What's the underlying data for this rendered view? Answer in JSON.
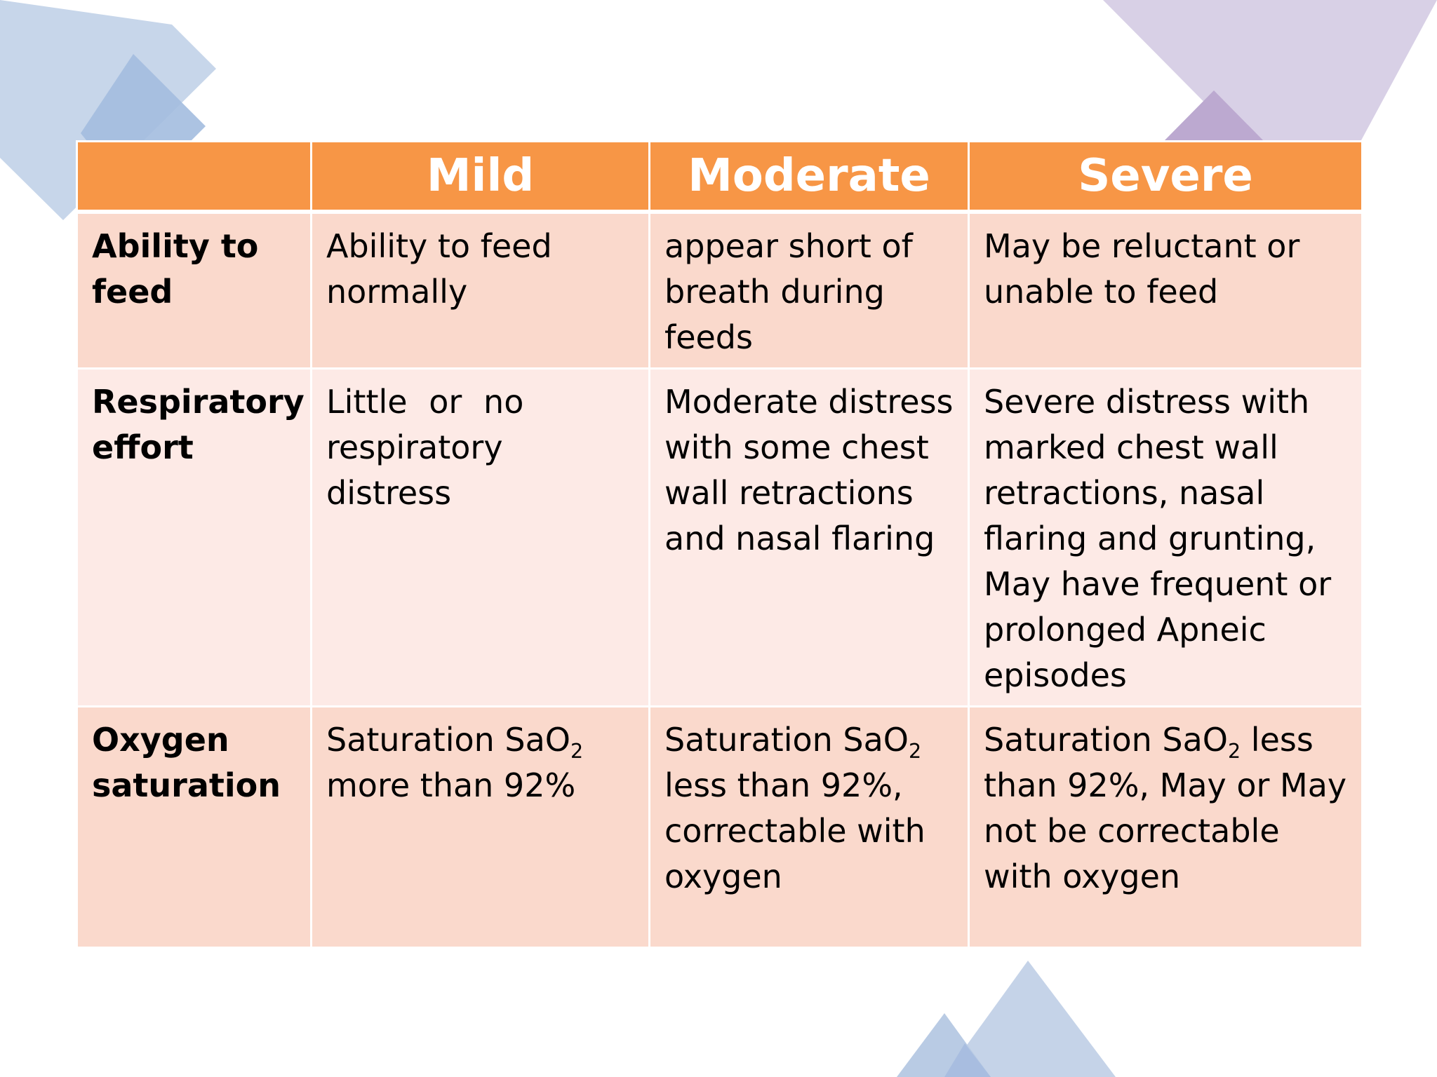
{
  "colors": {
    "header_background": "#f79646",
    "row_odd": "#fad9cc",
    "row_even": "#fdeae6",
    "decoration_blue": "#9db7dc",
    "decoration_purple": "#b9aad2"
  },
  "table": {
    "headers": [
      "",
      "Mild",
      "Moderate",
      "Severe"
    ],
    "rows": [
      {
        "label": "Ability to feed",
        "mild": "Ability to feed normally",
        "moderate": "appear short of  breath during  feeds",
        "severe": "May be reluctant or  unable to feed"
      },
      {
        "label": "Respiratory effort",
        "mild": "Little    or    no respiratory distress",
        "moderate": "Moderate distress  with some chest  wall retractions  and nasal flaring",
        "severe": "Severe distress with marked chest wall retractions, nasal flaring  and grunting, May have  frequent or prolonged  Apneic episodes"
      },
      {
        "label": "Oxygen saturation",
        "mild_prefix": "Saturation SaO",
        "mild_sub": "2",
        "mild_suffix": " more than 92%",
        "moderate_prefix": "Saturation SaO",
        "moderate_sub": "2",
        "moderate_suffix": " less than 92%, correctable with  oxygen",
        "severe_prefix": "Saturation SaO",
        "severe_sub": "2",
        "severe_suffix": "  less than 92%, May or May  not be correctable with oxygen"
      }
    ]
  }
}
